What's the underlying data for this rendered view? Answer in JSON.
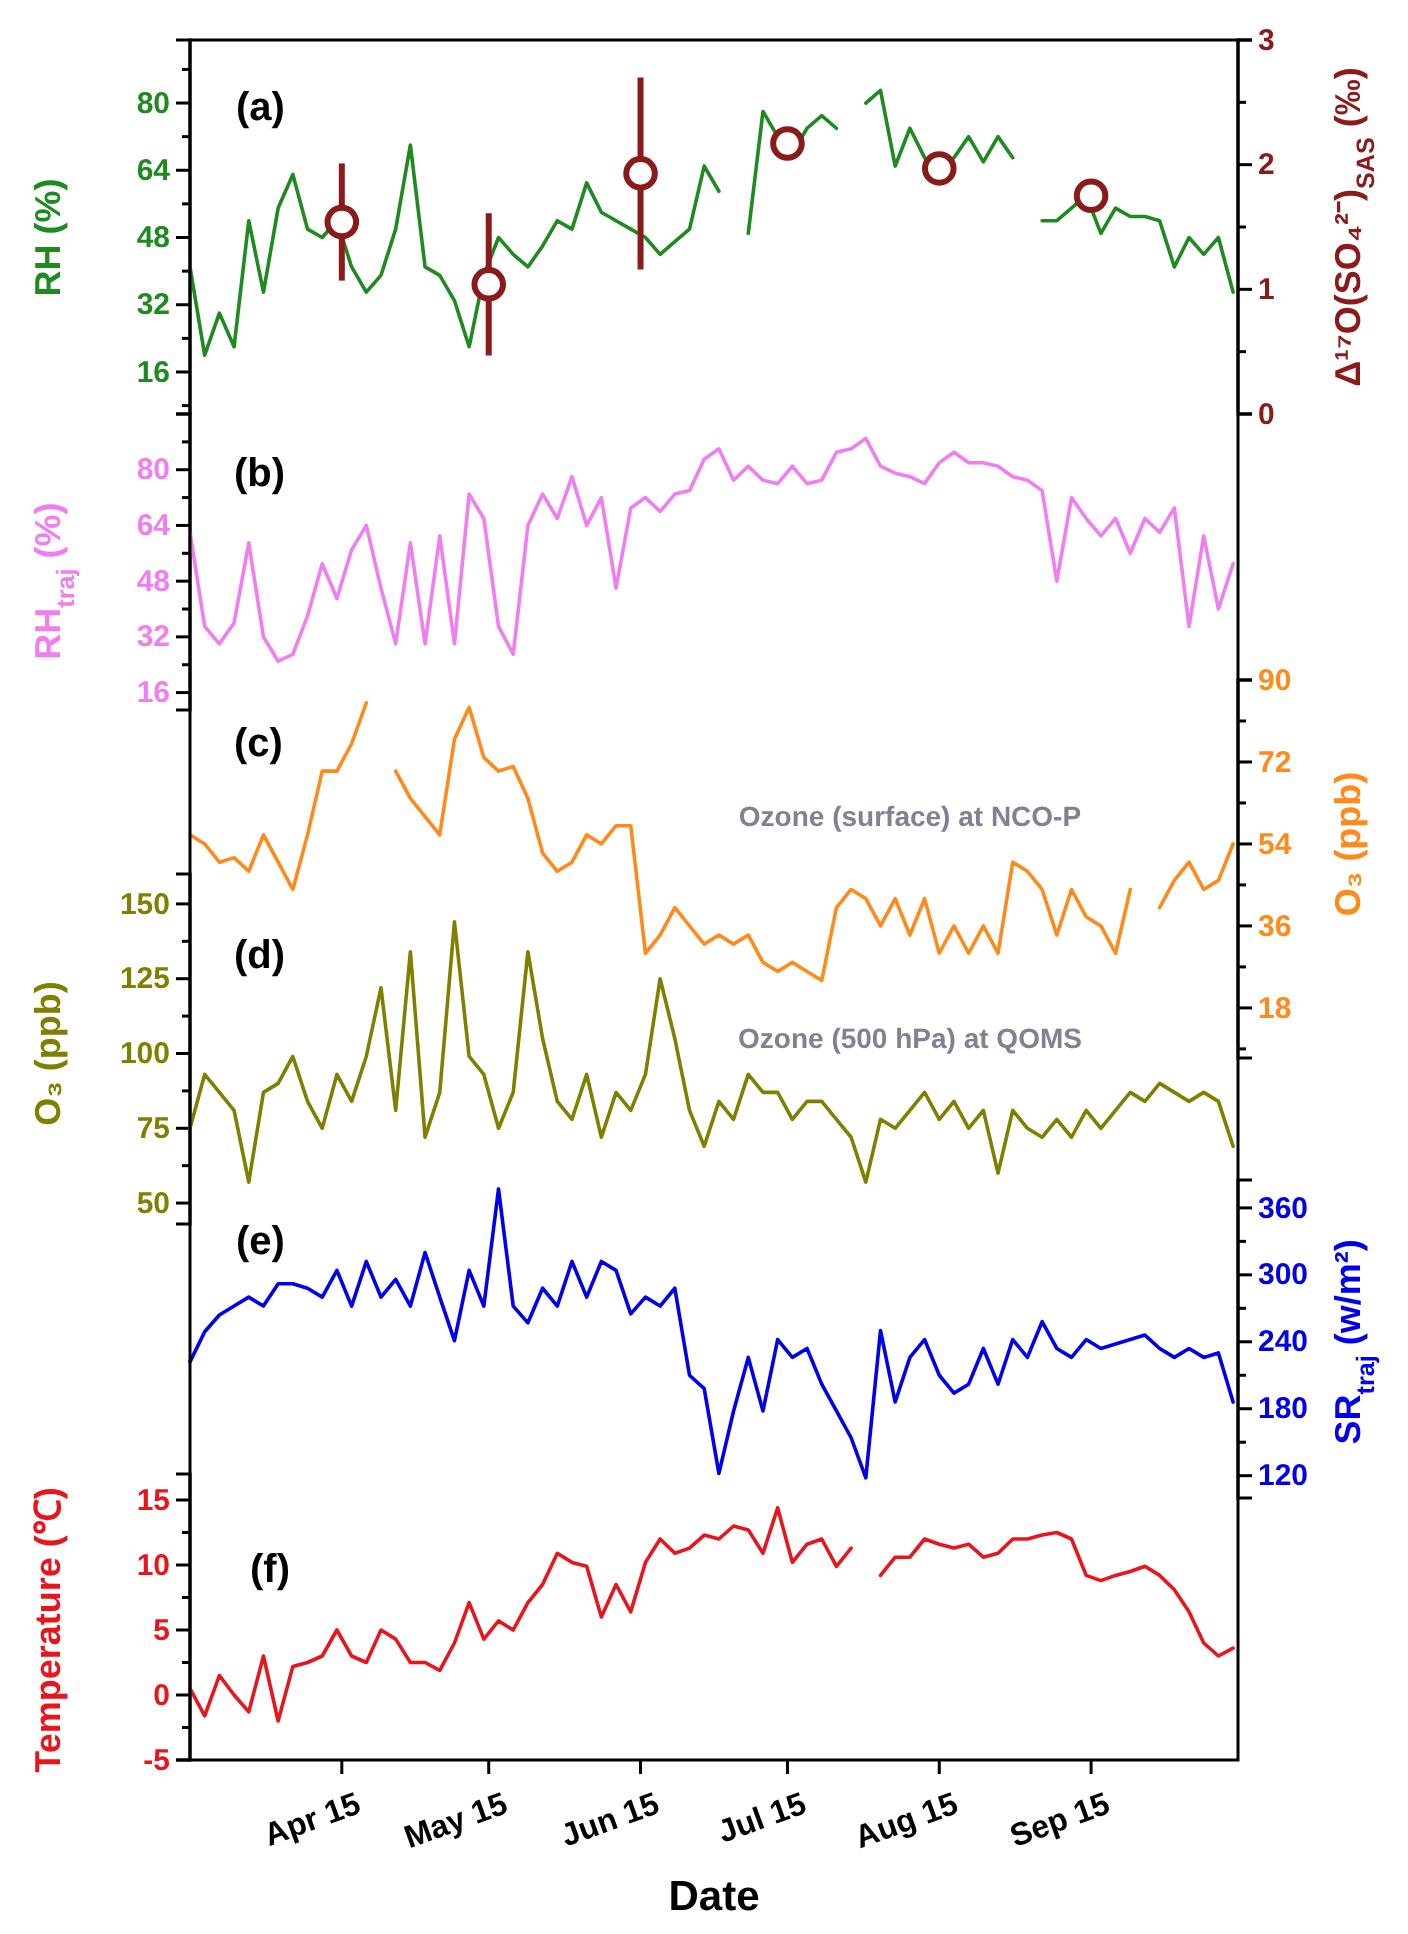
{
  "chart_data": [
    {
      "type": "line",
      "x": [
        "--03-15",
        "--03-18",
        "--03-21",
        "--03-24",
        "--03-27",
        "--03-30",
        "--04-02",
        "--04-05",
        "--04-08",
        "--04-11",
        "--04-14",
        "--04-17",
        "--04-20",
        "--04-23",
        "--04-26",
        "--04-29",
        "--05-02",
        "--05-05",
        "--05-08",
        "--05-11",
        "--05-14",
        "--05-17",
        "--05-20",
        "--05-23",
        "--05-26",
        "--05-29",
        "--06-01",
        "--06-04",
        "--06-07",
        "--06-10",
        "--06-13",
        "--06-16",
        "--06-19",
        "--06-22",
        "--06-25",
        "--06-28",
        "--07-01",
        "--07-04",
        "--07-07",
        "--07-10",
        "--07-13",
        "--07-16",
        "--07-19",
        "--07-22",
        "--07-25",
        "--07-28",
        "--07-31",
        "--08-03",
        "--08-06",
        "--08-09",
        "--08-12",
        "--08-15",
        "--08-18",
        "--08-21",
        "--08-24",
        "--08-27",
        "--08-30",
        "--09-02",
        "--09-05",
        "--09-08",
        "--09-11",
        "--09-14",
        "--09-17",
        "--09-20",
        "--09-23",
        "--09-26",
        "--09-29",
        "--10-02",
        "--10-05",
        "--10-08",
        "--10-11",
        "--10-14"
      ],
      "xlim": [
        "--03-15",
        "--10-15"
      ],
      "ylim": [
        6,
        95
      ],
      "yticks": [
        {
          "value": 8,
          "label": null
        },
        16,
        {
          "value": 24,
          "label": null
        },
        32,
        {
          "value": 40,
          "label": null
        },
        48,
        {
          "value": 56,
          "label": null
        },
        64,
        {
          "value": 72,
          "label": null
        },
        80,
        {
          "value": 88,
          "label": null
        }
      ],
      "y2lim": [
        0,
        3
      ],
      "y2ticks": [
        0,
        {
          "value": 0.5,
          "label": null
        },
        1,
        {
          "value": 1.5,
          "label": null
        },
        2,
        {
          "value": 2.5,
          "label": null
        },
        3
      ],
      "ylabel": "RH (%)",
      "y2label": "Δ¹⁷O(SO₄²⁻)$_{SAS}$ (‰)",
      "tick_labels": "y",
      "annotations": [
        "(a)"
      ],
      "series": [
        {
          "color": "#1f8a1f",
          "values": [
            41,
            20,
            30,
            22,
            52,
            35,
            55,
            63,
            50,
            48,
            52,
            41,
            35,
            39,
            50,
            70,
            41,
            39,
            33,
            22,
            39,
            48,
            44,
            41,
            46,
            52,
            50,
            61,
            54,
            52,
            50,
            48,
            44,
            47,
            50,
            65,
            59,
            null,
            49,
            78,
            72,
            68,
            74,
            77,
            74,
            null,
            80,
            83,
            65,
            74,
            67,
            63,
            67,
            72,
            66,
            72,
            67,
            null,
            52,
            52,
            55,
            58,
            49,
            55,
            53,
            53,
            52,
            41,
            48,
            44,
            48,
            35
          ]
        },
        {
          "type": "scatter",
          "axis": "y2",
          "marker": "circle",
          "color": "#8b1a1a",
          "x": [
            "--04-15",
            "--05-15",
            "--06-15",
            "--07-15",
            "--08-15",
            "--09-15"
          ],
          "values": [
            1.54,
            1.04,
            1.93,
            2.17,
            1.97,
            1.75
          ],
          "errors": [
            0.47,
            0.57,
            0.77,
            0.12,
            null,
            0.12
          ]
        }
      ]
    },
    {
      "type": "line",
      "x": [
        "--03-15",
        "--03-18",
        "--03-21",
        "--03-24",
        "--03-27",
        "--03-30",
        "--04-02",
        "--04-05",
        "--04-08",
        "--04-11",
        "--04-14",
        "--04-17",
        "--04-20",
        "--04-23",
        "--04-26",
        "--04-29",
        "--05-02",
        "--05-05",
        "--05-08",
        "--05-11",
        "--05-14",
        "--05-17",
        "--05-20",
        "--05-23",
        "--05-26",
        "--05-29",
        "--06-01",
        "--06-04",
        "--06-07",
        "--06-10",
        "--06-13",
        "--06-16",
        "--06-19",
        "--06-22",
        "--06-25",
        "--06-28",
        "--07-01",
        "--07-04",
        "--07-07",
        "--07-10",
        "--07-13",
        "--07-16",
        "--07-19",
        "--07-22",
        "--07-25",
        "--07-28",
        "--07-31",
        "--08-03",
        "--08-06",
        "--08-09",
        "--08-12",
        "--08-15",
        "--08-18",
        "--08-21",
        "--08-24",
        "--08-27",
        "--08-30",
        "--09-02",
        "--09-05",
        "--09-08",
        "--09-11",
        "--09-14",
        "--09-17",
        "--09-20",
        "--09-23",
        "--09-26",
        "--09-29",
        "--10-02",
        "--10-05",
        "--10-08",
        "--10-11",
        "--10-14"
      ],
      "xlim": [
        "--03-15",
        "--10-15"
      ],
      "ylim": [
        11,
        96
      ],
      "yticks": [
        16,
        {
          "value": 24,
          "label": null
        },
        32,
        {
          "value": 40,
          "label": null
        },
        48,
        {
          "value": 56,
          "label": null
        },
        64,
        {
          "value": 72,
          "label": null
        },
        80,
        {
          "value": 88,
          "label": null
        }
      ],
      "ylabel": "RH$_{traj}$ (%)",
      "tick_labels": "y",
      "annotations": [
        "(b)"
      ],
      "series": [
        {
          "color": "#f07ef0",
          "values": [
            62,
            35,
            30,
            36,
            59,
            32,
            25,
            27,
            38,
            53,
            43,
            57,
            64,
            46,
            30,
            59,
            30,
            61,
            30,
            73,
            66,
            35,
            27,
            64,
            73,
            66,
            78,
            64,
            72,
            46,
            69,
            72,
            68,
            73,
            74,
            83,
            86,
            77,
            81,
            77,
            76,
            81,
            76,
            77,
            85,
            86,
            89,
            81,
            79,
            78,
            76,
            82,
            85,
            82,
            82,
            81,
            78,
            77,
            74,
            48,
            72,
            66,
            61,
            66,
            56,
            66,
            62,
            69,
            35,
            61,
            40,
            53
          ]
        }
      ]
    },
    {
      "type": "line",
      "x": [
        "--03-15",
        "--03-18",
        "--03-21",
        "--03-24",
        "--03-27",
        "--03-30",
        "--04-02",
        "--04-05",
        "--04-08",
        "--04-11",
        "--04-14",
        "--04-17",
        "--04-20",
        "--04-23",
        "--04-26",
        "--04-29",
        "--05-02",
        "--05-05",
        "--05-08",
        "--05-11",
        "--05-14",
        "--05-17",
        "--05-20",
        "--05-23",
        "--05-26",
        "--05-29",
        "--06-01",
        "--06-04",
        "--06-07",
        "--06-10",
        "--06-13",
        "--06-16",
        "--06-19",
        "--06-22",
        "--06-25",
        "--06-28",
        "--07-01",
        "--07-04",
        "--07-07",
        "--07-10",
        "--07-13",
        "--07-16",
        "--07-19",
        "--07-22",
        "--07-25",
        "--07-28",
        "--07-31",
        "--08-03",
        "--08-06",
        "--08-09",
        "--08-12",
        "--08-15",
        "--08-18",
        "--08-21",
        "--08-24",
        "--08-27",
        "--08-30",
        "--09-02",
        "--09-05",
        "--09-08",
        "--09-11",
        "--09-14",
        "--09-17",
        "--09-20",
        "--09-23",
        "--09-26",
        "--09-29",
        "--10-02",
        "--10-05",
        "--10-08",
        "--10-11",
        "--10-14"
      ],
      "xlim": [
        "--03-15",
        "--10-15"
      ],
      "y2lim": [
        7,
        90
      ],
      "y2ticks": [
        {
          "value": 9,
          "label": null
        },
        18,
        {
          "value": 27,
          "label": null
        },
        36,
        {
          "value": 45,
          "label": null
        },
        54,
        {
          "value": 63,
          "label": null
        },
        72,
        {
          "value": 81,
          "label": null
        },
        90
      ],
      "y2label": "O₃ (ppb)",
      "tick_labels": "y",
      "annotations": [
        "(c)",
        "Ozone (surface) at NCO-P"
      ],
      "series": [
        {
          "axis": "y2",
          "color": "#ff8a1c",
          "values": [
            56,
            54,
            50,
            51,
            48,
            56,
            50,
            44,
            56,
            70,
            70,
            76,
            85,
            null,
            70,
            64,
            60,
            56,
            77,
            84,
            73,
            70,
            71,
            64,
            52,
            48,
            50,
            56,
            54,
            58,
            58,
            30,
            34,
            40,
            36,
            32,
            34,
            32,
            34,
            28,
            26,
            28,
            26,
            24,
            40,
            44,
            42,
            36,
            42,
            34,
            42,
            30,
            36,
            30,
            36,
            30,
            50,
            48,
            44,
            34,
            44,
            38,
            36,
            30,
            44,
            null,
            40,
            46,
            50,
            44,
            46,
            54
          ]
        }
      ]
    },
    {
      "type": "line",
      "x": [
        "--03-15",
        "--03-18",
        "--03-21",
        "--03-24",
        "--03-27",
        "--03-30",
        "--04-02",
        "--04-05",
        "--04-08",
        "--04-11",
        "--04-14",
        "--04-17",
        "--04-20",
        "--04-23",
        "--04-26",
        "--04-29",
        "--05-02",
        "--05-05",
        "--05-08",
        "--05-11",
        "--05-14",
        "--05-17",
        "--05-20",
        "--05-23",
        "--05-26",
        "--05-29",
        "--06-01",
        "--06-04",
        "--06-07",
        "--06-10",
        "--06-13",
        "--06-16",
        "--06-19",
        "--06-22",
        "--06-25",
        "--06-28",
        "--07-01",
        "--07-04",
        "--07-07",
        "--07-10",
        "--07-13",
        "--07-16",
        "--07-19",
        "--07-22",
        "--07-25",
        "--07-28",
        "--07-31",
        "--08-03",
        "--08-06",
        "--08-09",
        "--08-12",
        "--08-15",
        "--08-18",
        "--08-21",
        "--08-24",
        "--08-27",
        "--08-30",
        "--09-02",
        "--09-05",
        "--09-08",
        "--09-11",
        "--09-14",
        "--09-17",
        "--09-20",
        "--09-23",
        "--09-26",
        "--09-29",
        "--10-02",
        "--10-05",
        "--10-08",
        "--10-11",
        "--10-14"
      ],
      "xlim": [
        "--03-15",
        "--10-15"
      ],
      "ylim": [
        43,
        160
      ],
      "yticks": [
        50,
        {
          "value": 62.5,
          "label": null
        },
        75,
        {
          "value": 87.5,
          "label": null
        },
        100,
        {
          "value": 112.5,
          "label": null
        },
        125,
        {
          "value": 137.5,
          "label": null
        },
        150
      ],
      "ylabel": "O₃ (ppb)",
      "tick_labels": "y",
      "annotations": [
        "(d)",
        "Ozone (500 hPa) at QOMS"
      ],
      "series": [
        {
          "color": "#808000",
          "values": [
            75,
            93,
            87,
            81,
            57,
            87,
            90,
            99,
            84,
            75,
            93,
            84,
            99,
            122,
            81,
            134,
            72,
            87,
            144,
            99,
            93,
            75,
            87,
            134,
            105,
            84,
            78,
            93,
            72,
            87,
            81,
            93,
            125,
            105,
            81,
            69,
            84,
            78,
            93,
            87,
            87,
            78,
            84,
            84,
            78,
            72,
            57,
            78,
            75,
            81,
            87,
            78,
            84,
            75,
            81,
            60,
            81,
            75,
            72,
            78,
            72,
            81,
            75,
            81,
            87,
            84,
            90,
            87,
            84,
            87,
            84,
            69
          ]
        }
      ]
    },
    {
      "type": "line",
      "x": [
        "--03-15",
        "--03-18",
        "--03-21",
        "--03-24",
        "--03-27",
        "--03-30",
        "--04-02",
        "--04-05",
        "--04-08",
        "--04-11",
        "--04-14",
        "--04-17",
        "--04-20",
        "--04-23",
        "--04-26",
        "--04-29",
        "--05-02",
        "--05-05",
        "--05-08",
        "--05-11",
        "--05-14",
        "--05-17",
        "--05-20",
        "--05-23",
        "--05-26",
        "--05-29",
        "--06-01",
        "--06-04",
        "--06-07",
        "--06-10",
        "--06-13",
        "--06-16",
        "--06-19",
        "--06-22",
        "--06-25",
        "--06-28",
        "--07-01",
        "--07-04",
        "--07-07",
        "--07-10",
        "--07-13",
        "--07-16",
        "--07-19",
        "--07-22",
        "--07-25",
        "--07-28",
        "--07-31",
        "--08-03",
        "--08-06",
        "--08-09",
        "--08-12",
        "--08-15",
        "--08-18",
        "--08-21",
        "--08-24",
        "--08-27",
        "--08-30",
        "--09-02",
        "--09-05",
        "--09-08",
        "--09-11",
        "--09-14",
        "--09-17",
        "--09-20",
        "--09-23",
        "--09-26",
        "--09-29",
        "--10-02",
        "--10-05",
        "--10-08",
        "--10-11",
        "--10-14"
      ],
      "xlim": [
        "--03-15",
        "--10-15"
      ],
      "y2lim": [
        100,
        385
      ],
      "y2ticks": [
        120,
        {
          "value": 150,
          "label": null
        },
        180,
        {
          "value": 210,
          "label": null
        },
        240,
        {
          "value": 270,
          "label": null
        },
        300,
        {
          "value": 330,
          "label": null
        },
        360
      ],
      "y2label": "SR$_{traj}$ (w/m²)",
      "tick_labels": "y",
      "annotations": [
        "(e)"
      ],
      "series": [
        {
          "axis": "y2",
          "color": "#0000ee",
          "values": [
            222,
            249,
            264,
            272,
            280,
            272,
            292,
            292,
            288,
            280,
            304,
            272,
            312,
            280,
            296,
            272,
            320,
            280,
            241,
            304,
            272,
            377,
            272,
            257,
            288,
            272,
            312,
            280,
            312,
            304,
            265,
            280,
            272,
            288,
            210,
            198,
            122,
            178,
            226,
            178,
            242,
            226,
            234,
            202,
            178,
            154,
            118,
            250,
            186,
            226,
            242,
            210,
            194,
            202,
            234,
            202,
            242,
            226,
            258,
            234,
            226,
            242,
            234,
            238,
            242,
            246,
            234,
            226,
            234,
            226,
            230,
            186
          ]
        }
      ]
    },
    {
      "type": "line",
      "x": [
        "--03-15",
        "--03-18",
        "--03-21",
        "--03-24",
        "--03-27",
        "--03-30",
        "--04-02",
        "--04-05",
        "--04-08",
        "--04-11",
        "--04-14",
        "--04-17",
        "--04-20",
        "--04-23",
        "--04-26",
        "--04-29",
        "--05-02",
        "--05-05",
        "--05-08",
        "--05-11",
        "--05-14",
        "--05-17",
        "--05-20",
        "--05-23",
        "--05-26",
        "--05-29",
        "--06-01",
        "--06-04",
        "--06-07",
        "--06-10",
        "--06-13",
        "--06-16",
        "--06-19",
        "--06-22",
        "--06-25",
        "--06-28",
        "--07-01",
        "--07-04",
        "--07-07",
        "--07-10",
        "--07-13",
        "--07-16",
        "--07-19",
        "--07-22",
        "--07-25",
        "--07-28",
        "--07-31",
        "--08-03",
        "--08-06",
        "--08-09",
        "--08-12",
        "--08-15",
        "--08-18",
        "--08-21",
        "--08-24",
        "--08-27",
        "--08-30",
        "--09-02",
        "--09-05",
        "--09-08",
        "--09-11",
        "--09-14",
        "--09-17",
        "--09-20",
        "--09-23",
        "--09-26",
        "--09-29",
        "--10-02",
        "--10-05",
        "--10-08",
        "--10-11",
        "--10-14"
      ],
      "xlim": [
        "--03-15",
        "--10-15"
      ],
      "xticks": [
        {
          "value": "--04-15",
          "label": "Apr 15"
        },
        {
          "value": "--05-15",
          "label": "May 15"
        },
        {
          "value": "--06-15",
          "label": "Jun 15"
        },
        {
          "value": "--07-15",
          "label": "Jul 15"
        },
        {
          "value": "--08-15",
          "label": "Aug 15"
        },
        {
          "value": "--09-15",
          "label": "Sep 15"
        }
      ],
      "ylim": [
        -5,
        17
      ],
      "yticks": [
        -5,
        {
          "value": -2.5,
          "label": null
        },
        0,
        {
          "value": 2.5,
          "label": null
        },
        5,
        {
          "value": 7.5,
          "label": null
        },
        10,
        {
          "value": 12.5,
          "label": null
        },
        15
      ],
      "xlabel": "Date",
      "ylabel": "Temperature (℃)",
      "annotations": [
        "(f)"
      ],
      "series": [
        {
          "color": "#e8161c",
          "values": [
            0.5,
            -1.6,
            1.5,
            0,
            -1.3,
            3,
            -2,
            2.2,
            2.5,
            3,
            5,
            3,
            2.5,
            5,
            4.3,
            2.5,
            2.5,
            1.9,
            4,
            7.1,
            4.3,
            5.7,
            5,
            7.1,
            8.5,
            10.9,
            10.2,
            9.9,
            6,
            8.5,
            6.4,
            10.2,
            12,
            10.9,
            11.3,
            12.3,
            12,
            13,
            12.7,
            10.9,
            14.4,
            10.2,
            11.6,
            12,
            9.9,
            11.3,
            null,
            9.2,
            10.6,
            10.6,
            12,
            11.6,
            11.3,
            11.6,
            10.6,
            10.9,
            12,
            12,
            12.3,
            12.5,
            12,
            9.2,
            8.8,
            9.2,
            9.5,
            9.9,
            9.2,
            8.1,
            6.4,
            4,
            3,
            3.6
          ]
        }
      ]
    }
  ]
}
